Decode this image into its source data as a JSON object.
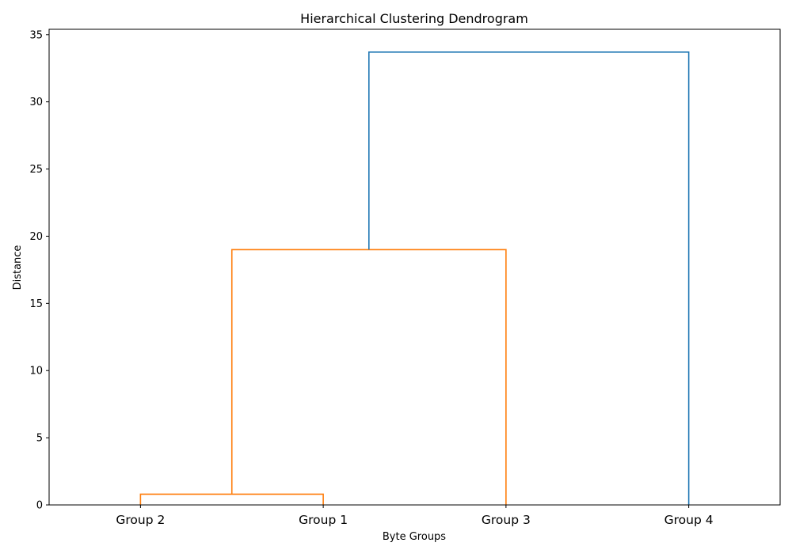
{
  "chart_data": {
    "type": "dendrogram",
    "title": "Hierarchical Clustering Dendrogram",
    "xlabel": "Byte Groups",
    "ylabel": "Distance",
    "ylim": [
      0,
      35.4
    ],
    "yticks": [
      0,
      5,
      10,
      15,
      20,
      25,
      30,
      35
    ],
    "leaves": [
      "Group 2",
      "Group 1",
      "Group 3",
      "Group 4"
    ],
    "merges": [
      {
        "left": "Group 2",
        "right": "Group 1",
        "distance": 0.8,
        "color": "#ff7f0e"
      },
      {
        "left": "Group 2 + Group 1",
        "right": "Group 3",
        "distance": 19.0,
        "color": "#ff7f0e"
      },
      {
        "left": "Group 2 + Group 1 + Group 3",
        "right": "Group 4",
        "distance": 33.7,
        "color": "#1f77b4"
      }
    ],
    "grid": false,
    "colors": {
      "cluster": "#ff7f0e",
      "above_threshold": "#1f77b4"
    }
  }
}
